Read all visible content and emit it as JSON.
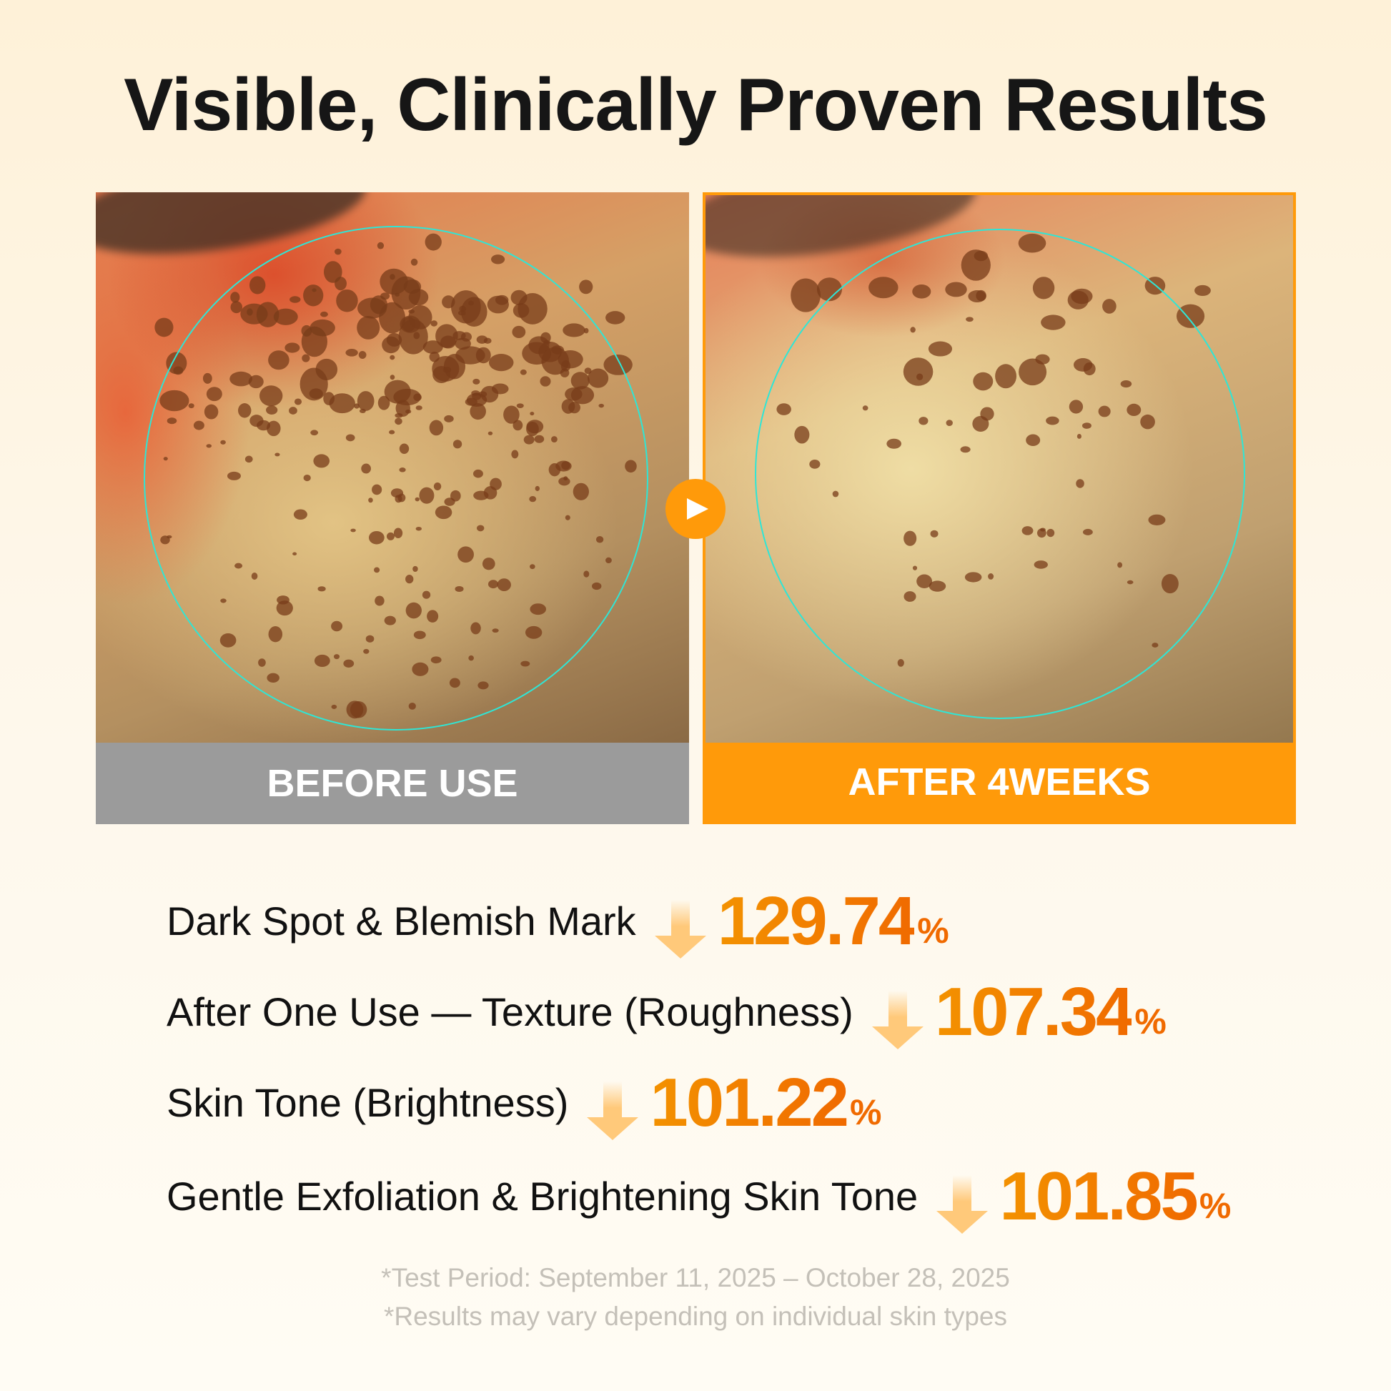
{
  "title": "Visible, Clinically Proven Results",
  "panels": {
    "before_label": "BEFORE USE",
    "after_label": "AFTER 4WEEKS"
  },
  "colors": {
    "accent": "#FF9A0A",
    "number": "#F06A00",
    "before_bar": "#9B9B9B",
    "circle": "#2EE6D6"
  },
  "play_icon": "play-icon",
  "stats": [
    {
      "label": "Dark Spot & Blemish Mark",
      "value": "129.74",
      "unit": "%",
      "icon": "arrow-down-icon"
    },
    {
      "label": "After One Use — Texture (Roughness)",
      "value": "107.34",
      "unit": "%",
      "icon": "arrow-down-icon"
    },
    {
      "label": "Skin Tone (Brightness)",
      "value": "101.22",
      "unit": "%",
      "icon": "arrow-down-icon"
    },
    {
      "label": "Gentle Exfoliation & Brightening Skin Tone",
      "value": "101.85",
      "unit": "%",
      "icon": "arrow-down-icon"
    }
  ],
  "footnotes": [
    "*Test Period: September 11, 2025 – October 28, 2025",
    "*Results may vary depending on individual skin types"
  ]
}
